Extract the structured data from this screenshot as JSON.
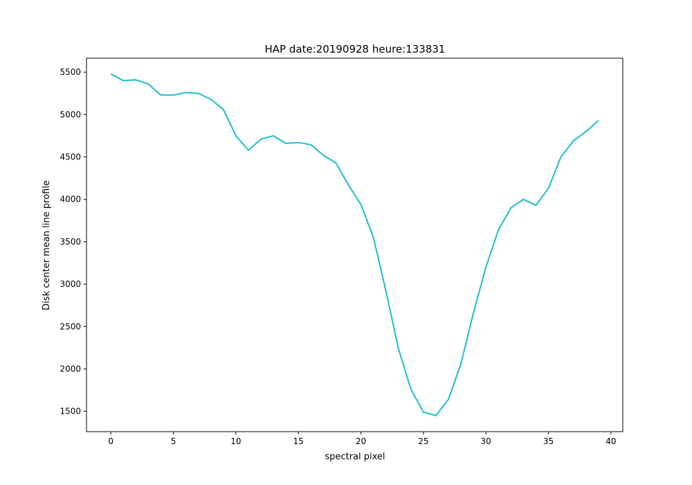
{
  "chart_data": {
    "type": "line",
    "title": "HAP date:20190928 heure:133831",
    "xlabel": "spectral pixel",
    "ylabel": "Disk center mean line profile",
    "xlim": [
      -1.95,
      40.95
    ],
    "ylim": [
      1260,
      5665
    ],
    "xticks": [
      0,
      5,
      10,
      15,
      20,
      25,
      30,
      35,
      40
    ],
    "yticks": [
      1500,
      2000,
      2500,
      3000,
      3500,
      4000,
      4500,
      5000,
      5500
    ],
    "grid": false,
    "line_color": "#17becf",
    "series": [
      {
        "x": [
          0,
          1,
          2,
          3,
          4,
          5,
          6,
          7,
          8,
          9,
          10,
          11,
          12,
          13,
          14,
          15,
          16,
          17,
          18,
          19,
          20,
          21,
          22,
          23,
          24,
          25,
          26,
          27,
          28,
          29,
          30,
          31,
          32,
          33,
          34,
          35,
          36,
          37,
          38,
          39
        ],
        "values": [
          5480,
          5400,
          5410,
          5360,
          5230,
          5230,
          5260,
          5250,
          5180,
          5060,
          4750,
          4580,
          4710,
          4750,
          4660,
          4670,
          4645,
          4520,
          4430,
          4170,
          3940,
          3550,
          2920,
          2240,
          1760,
          1490,
          1450,
          1640,
          2060,
          2660,
          3200,
          3640,
          3900,
          4000,
          3930,
          4130,
          4500,
          4690,
          4800,
          4930
        ]
      }
    ]
  }
}
